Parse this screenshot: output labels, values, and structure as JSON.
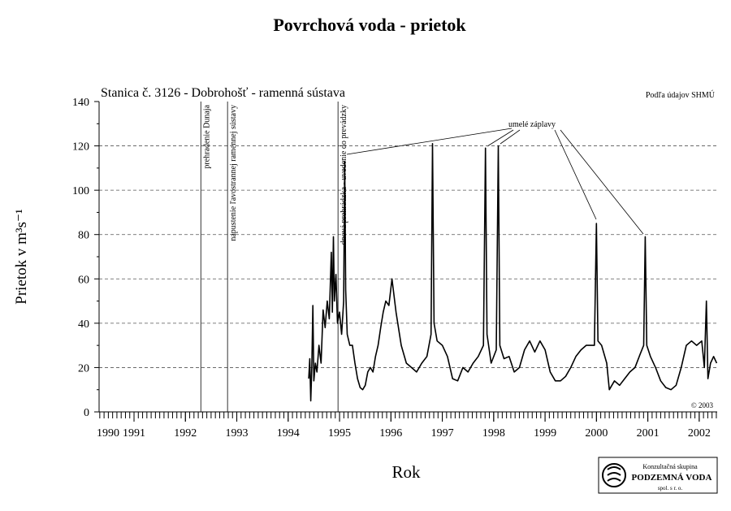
{
  "chart_data": {
    "type": "line",
    "title": "Povrchová voda -  prietok",
    "subtitle": "Stanica č. 3126 - Dobrohošť - ramenná sústava",
    "source": "Podľa údajov SHMÚ",
    "copyright": "© 2003",
    "y_label": "Prietok  v  m³s⁻¹",
    "x_label": "Rok",
    "x_start_label": "1990",
    "xlim": [
      1990.32,
      2002.35
    ],
    "xticks": [
      1991,
      1992,
      1993,
      1994,
      1995,
      1996,
      1997,
      1998,
      1999,
      2000,
      2001,
      2002
    ],
    "ylim": [
      0,
      140
    ],
    "yticks": [
      0,
      20,
      40,
      60,
      80,
      100,
      120,
      140
    ],
    "grid": true,
    "color": "#000000",
    "events": [
      {
        "x": 1992.3,
        "label": "prehradenie Dunaja"
      },
      {
        "x": 1992.82,
        "label": "napustenie ľavostrannej ramennej sústavy"
      },
      {
        "x": 1994.97,
        "label": "dnová prehrádzka - uvedenie do prevádzky"
      }
    ],
    "annotation": "umelé záplavy",
    "logo": {
      "line1": "Konzultačná skupina",
      "line2": "PODZEMNÁ VODA",
      "line3": "spol. s r. o."
    },
    "x": [
      1994.4,
      1994.42,
      1994.44,
      1994.46,
      1994.48,
      1994.5,
      1994.53,
      1994.56,
      1994.6,
      1994.64,
      1994.68,
      1994.72,
      1994.76,
      1994.8,
      1994.84,
      1994.86,
      1994.88,
      1994.9,
      1994.93,
      1994.96,
      1995.0,
      1995.04,
      1995.08,
      1995.1,
      1995.12,
      1995.15,
      1995.2,
      1995.25,
      1995.3,
      1995.35,
      1995.4,
      1995.45,
      1995.5,
      1995.55,
      1995.6,
      1995.65,
      1995.7,
      1995.75,
      1995.8,
      1995.85,
      1995.9,
      1995.96,
      1996.02,
      1996.1,
      1996.2,
      1996.3,
      1996.4,
      1996.5,
      1996.6,
      1996.7,
      1996.78,
      1996.81,
      1996.84,
      1996.9,
      1997.0,
      1997.1,
      1997.2,
      1997.3,
      1997.4,
      1997.5,
      1997.6,
      1997.7,
      1997.8,
      1997.84,
      1997.87,
      1997.95,
      1998.05,
      1998.09,
      1998.12,
      1998.2,
      1998.3,
      1998.4,
      1998.5,
      1998.6,
      1998.7,
      1998.8,
      1998.9,
      1999.0,
      1999.1,
      1999.2,
      1999.3,
      1999.4,
      1999.5,
      1999.6,
      1999.7,
      1999.8,
      1999.96,
      2000.0,
      2000.03,
      2000.1,
      2000.2,
      2000.25,
      2000.35,
      2000.45,
      2000.55,
      2000.65,
      2000.75,
      2000.85,
      2000.92,
      2000.95,
      2000.98,
      2001.05,
      2001.15,
      2001.25,
      2001.35,
      2001.45,
      2001.55,
      2001.65,
      2001.75,
      2001.85,
      2001.95,
      2002.05,
      2002.1,
      2002.14,
      2002.17,
      2002.22,
      2002.28,
      2002.34
    ],
    "values": [
      15,
      24,
      5,
      20,
      48,
      14,
      22,
      18,
      30,
      22,
      46,
      38,
      50,
      42,
      72,
      45,
      79,
      50,
      62,
      40,
      45,
      35,
      50,
      113,
      55,
      35,
      30,
      30,
      22,
      15,
      11,
      10,
      12,
      18,
      20,
      18,
      25,
      30,
      38,
      45,
      50,
      48,
      60,
      45,
      30,
      22,
      20,
      18,
      22,
      25,
      35,
      121,
      40,
      32,
      30,
      25,
      15,
      14,
      20,
      18,
      22,
      25,
      30,
      119,
      35,
      22,
      28,
      120,
      30,
      24,
      25,
      18,
      20,
      28,
      32,
      27,
      32,
      28,
      18,
      14,
      14,
      16,
      20,
      25,
      28,
      30,
      30,
      85,
      32,
      30,
      22,
      10,
      14,
      12,
      15,
      18,
      20,
      26,
      30,
      79,
      30,
      25,
      20,
      14,
      11,
      10,
      12,
      20,
      30,
      32,
      30,
      32,
      20,
      50,
      15,
      22,
      25,
      22
    ]
  }
}
